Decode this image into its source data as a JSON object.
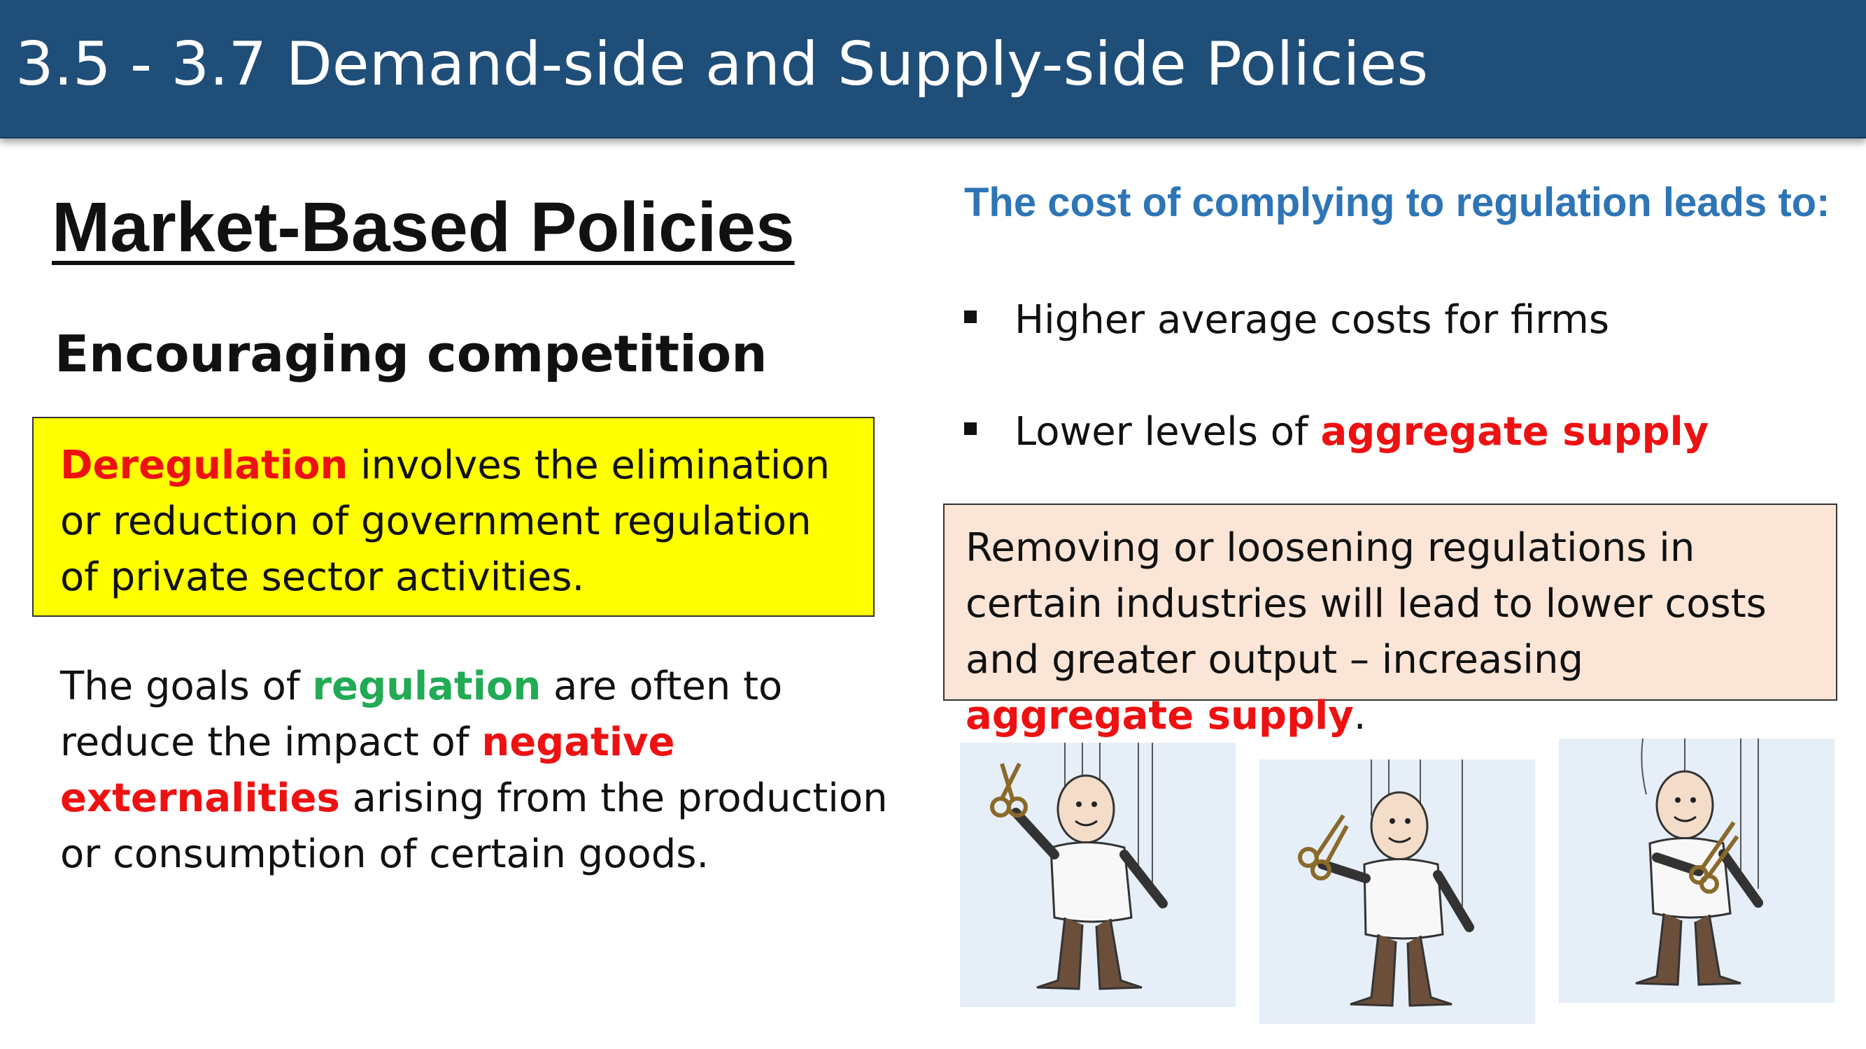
{
  "slide": {
    "title": "3.5 - 3.7 Demand-side and Supply-side Policies"
  },
  "left": {
    "heading": "Market-Based Policies",
    "subheading": "Encouraging competition",
    "definition_box": {
      "term": "Deregulation",
      "text": " involves the elimination or reduction of government regulation of private sector activities."
    },
    "goals": {
      "part1": "The goals of ",
      "regulation": "regulation",
      "part2": " are often to reduce the impact of ",
      "negative_externalities": "negative externalities",
      "part3": " arising from the production or consumption of certain goods."
    }
  },
  "right": {
    "heading": "The cost of complying to regulation leads to:",
    "bullets": [
      {
        "text": "Higher average costs for firms",
        "highlight": ""
      },
      {
        "text": "Lower levels of ",
        "highlight": "aggregate supply"
      }
    ],
    "summary_box": {
      "text": "Removing or loosening regulations in certain industries will lead to lower costs and greater output – increasing ",
      "highlight": "aggregate supply",
      "end": "."
    }
  },
  "colors": {
    "title_bar": "#1f4e79",
    "highlight_red": "#ee1111",
    "highlight_green": "#22aa55",
    "heading_blue": "#2e75b6",
    "yellow_box": "#ffff00",
    "peach_box": "#fbe5d6"
  },
  "images": [
    {
      "icon": "puppet-cutting-strings-icon"
    },
    {
      "icon": "puppet-cutting-strings-icon"
    },
    {
      "icon": "puppet-cutting-strings-icon"
    }
  ]
}
